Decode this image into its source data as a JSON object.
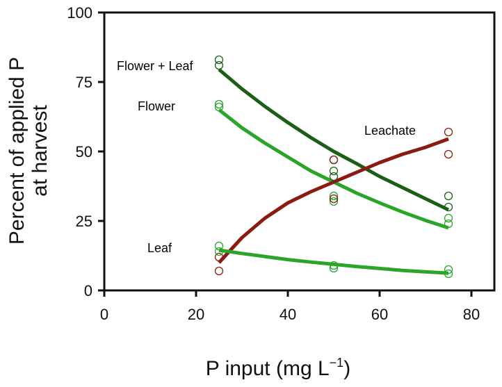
{
  "chart_data": {
    "type": "scatter",
    "xlabel": "P input (mg L",
    "xlabel_superscript": "−1",
    "xlabel_close": ")",
    "ylabel_line1": "Percent of applied P",
    "ylabel_line2": "at harvest",
    "xlim": [
      0,
      85
    ],
    "ylim": [
      0,
      100
    ],
    "xticks": [
      0,
      20,
      40,
      60,
      80
    ],
    "yticks": [
      0,
      25,
      50,
      75,
      100
    ],
    "series": [
      {
        "name": "Flower + Leaf",
        "color": "#1c5e16",
        "fit_x": [
          25,
          30,
          35,
          40,
          45,
          50,
          55,
          60,
          65,
          70,
          75
        ],
        "fit_y": [
          79.5,
          72.5,
          66.2,
          60.4,
          55.0,
          50.0,
          45.6,
          41.0,
          37.0,
          33.0,
          29.0
        ],
        "points": [
          [
            25,
            83
          ],
          [
            25,
            81
          ],
          [
            50,
            47
          ],
          [
            50,
            43
          ],
          [
            50,
            41
          ],
          [
            75,
            34
          ],
          [
            75,
            30
          ]
        ]
      },
      {
        "name": "Flower",
        "color": "#2aa52a",
        "fit_x": [
          25,
          30,
          35,
          40,
          45,
          50,
          55,
          60,
          65,
          70,
          75
        ],
        "fit_y": [
          65.0,
          58.5,
          53.0,
          48.0,
          43.0,
          39.0,
          35.0,
          31.5,
          28.2,
          25.2,
          22.5
        ],
        "points": [
          [
            25,
            67
          ],
          [
            25,
            66
          ],
          [
            50,
            34
          ],
          [
            50,
            32
          ],
          [
            75,
            26
          ],
          [
            75,
            24
          ]
        ]
      },
      {
        "name": "Leachate",
        "color": "#8b1a10",
        "fit_x": [
          25,
          30,
          35,
          40,
          45,
          50,
          55,
          60,
          65,
          70,
          75
        ],
        "fit_y": [
          10.0,
          19.0,
          26.0,
          31.5,
          35.5,
          39.0,
          42.5,
          46.0,
          49.0,
          51.5,
          54.5
        ],
        "points": [
          [
            25,
            12
          ],
          [
            25,
            7
          ],
          [
            50,
            47
          ],
          [
            50,
            33
          ],
          [
            75,
            57
          ],
          [
            75,
            49
          ]
        ]
      },
      {
        "name": "Leaf",
        "color": "#2aa52a",
        "fit_x": [
          25,
          30,
          35,
          40,
          45,
          50,
          55,
          60,
          65,
          70,
          75
        ],
        "fit_y": [
          14.5,
          13.3,
          12.2,
          11.1,
          10.2,
          9.4,
          8.6,
          7.9,
          7.2,
          6.7,
          6.2
        ],
        "points": [
          [
            25,
            16
          ],
          [
            25,
            14
          ],
          [
            50,
            9
          ],
          [
            50,
            8
          ],
          [
            75,
            7.5
          ],
          [
            75,
            6
          ]
        ]
      }
    ]
  }
}
